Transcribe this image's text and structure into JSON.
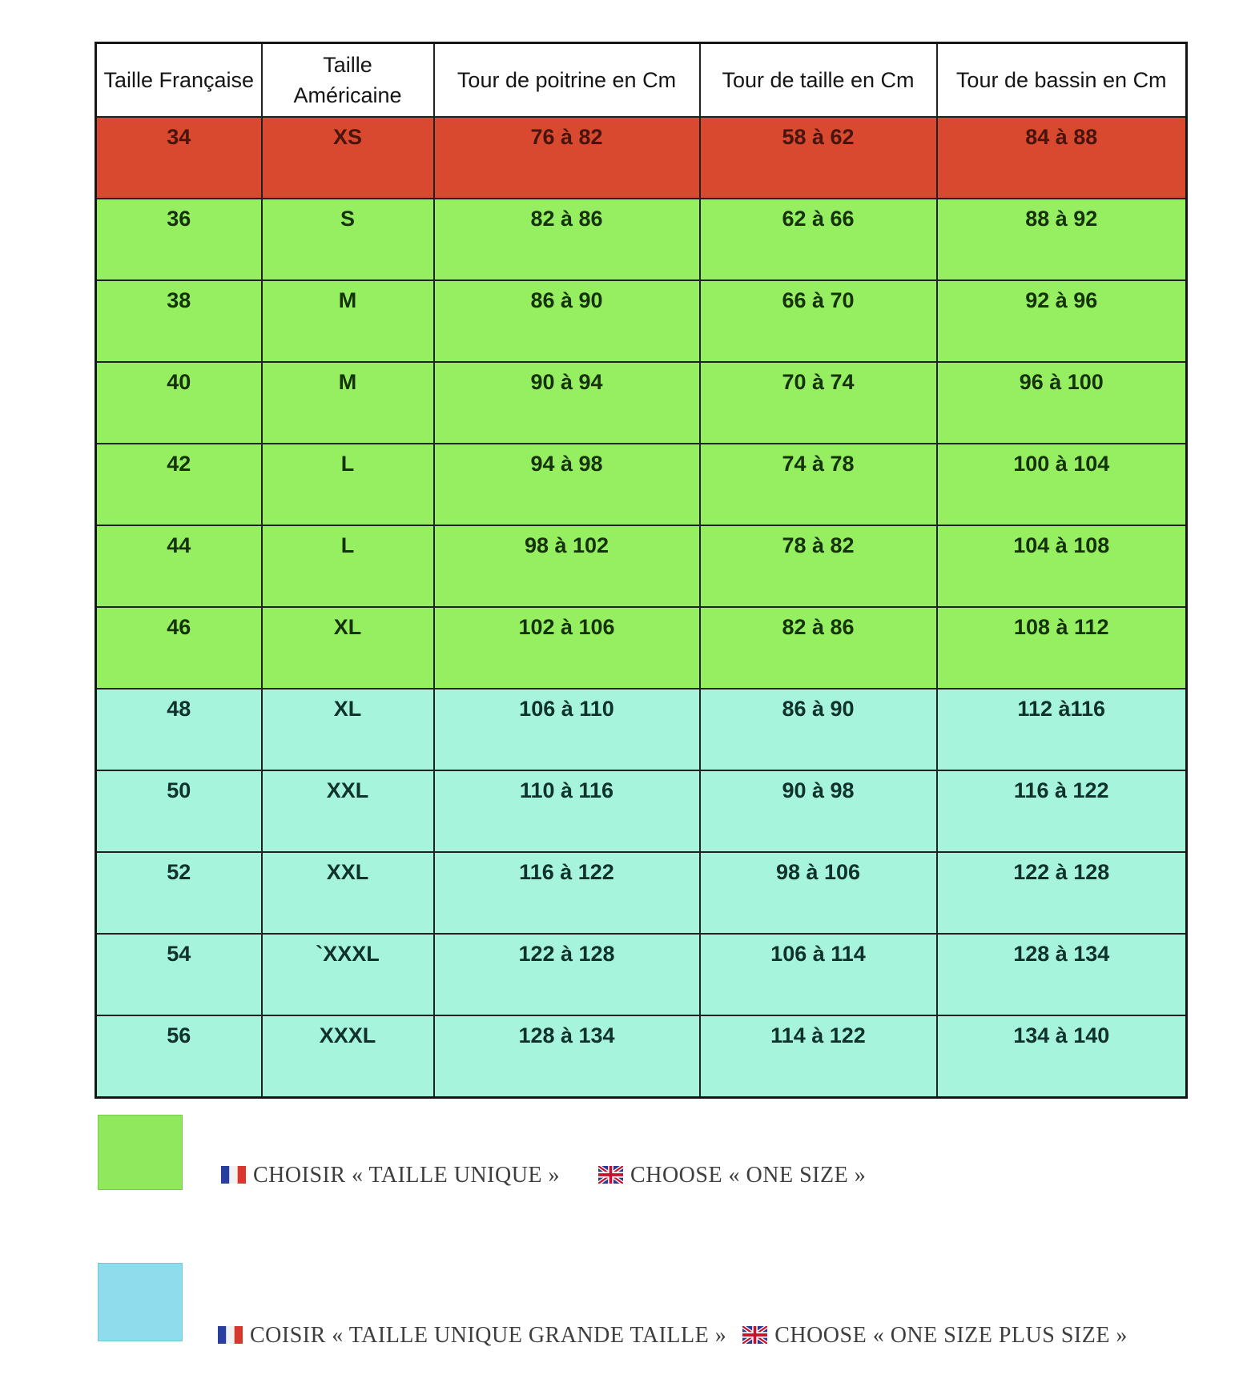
{
  "table": {
    "headers": [
      "Taille Française",
      "Taille Américaine",
      "Tour de poitrine en Cm",
      "Tour de taille en Cm",
      "Tour de bassin en Cm"
    ],
    "column_keys": [
      "fr",
      "us",
      "poitrine",
      "taille",
      "bassin"
    ],
    "rows": [
      {
        "fr": "34",
        "us": "XS",
        "poitrine": "76 à 82",
        "taille": "58 à 62",
        "bassin": "84 à 88",
        "color": "red"
      },
      {
        "fr": "36",
        "us": "S",
        "poitrine": "82 à 86",
        "taille": "62 à 66",
        "bassin": "88 à 92",
        "color": "green"
      },
      {
        "fr": "38",
        "us": "M",
        "poitrine": "86 à 90",
        "taille": "66 à 70",
        "bassin": "92 à 96",
        "color": "green"
      },
      {
        "fr": "40",
        "us": "M",
        "poitrine": "90 à 94",
        "taille": "70 à 74",
        "bassin": "96 à 100",
        "color": "green"
      },
      {
        "fr": "42",
        "us": "L",
        "poitrine": "94 à 98",
        "taille": "74 à 78",
        "bassin": "100 à 104",
        "color": "green"
      },
      {
        "fr": "44",
        "us": "L",
        "poitrine": "98 à 102",
        "taille": "78 à 82",
        "bassin": "104 à 108",
        "color": "green"
      },
      {
        "fr": "46",
        "us": "XL",
        "poitrine": "102 à 106",
        "taille": "82 à 86",
        "bassin": "108 à 112",
        "color": "green"
      },
      {
        "fr": "48",
        "us": "XL",
        "poitrine": "106 à 110",
        "taille": "86 à 90",
        "bassin": "112 à116",
        "color": "teal"
      },
      {
        "fr": "50",
        "us": "XXL",
        "poitrine": "110 à 116",
        "taille": "90 à 98",
        "bassin": "116 à 122",
        "color": "teal"
      },
      {
        "fr": "52",
        "us": "XXL",
        "poitrine": "116 à 122",
        "taille": "98 à 106",
        "bassin": "122 à 128",
        "color": "teal"
      },
      {
        "fr": "54",
        "us": "`XXXL",
        "poitrine": "122 à 128",
        "taille": "106 à 114",
        "bassin": "128 à 134",
        "color": "teal"
      },
      {
        "fr": "56",
        "us": "XXXL",
        "poitrine": "128 à 134",
        "taille": "114 à 122",
        "bassin": "134 à 140",
        "color": "teal"
      }
    ]
  },
  "legend": [
    {
      "swatch": "green",
      "fr_label": "CHOISIR « TAILLE UNIQUE »",
      "en_label": "CHOOSE « ONE SIZE »"
    },
    {
      "swatch": "blue",
      "fr_label": "COISIR « TAILLE UNIQUE GRANDE TAILLE »",
      "en_label": "CHOOSE « ONE SIZE PLUS SIZE »"
    }
  ],
  "colors": {
    "red_row": "#d9492f",
    "green_row": "#95ef61",
    "teal_row": "#a7f4dd",
    "legend_green_swatch": "#90e95c",
    "legend_blue_swatch": "#8edcec",
    "border": "#212121"
  }
}
